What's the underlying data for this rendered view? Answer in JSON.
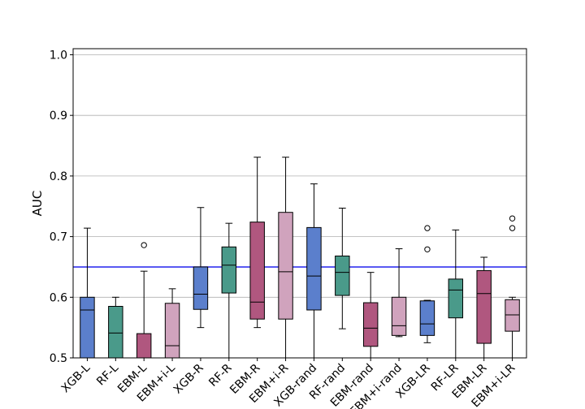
{
  "chart_data": {
    "type": "box",
    "title": "",
    "xlabel": "",
    "ylabel": "AUC",
    "ylim": [
      0.5,
      1.01
    ],
    "yticks": [
      0.5,
      0.6,
      0.7,
      0.8,
      0.9,
      1.0
    ],
    "ytick_labels": [
      "0.5",
      "0.6",
      "0.7",
      "0.8",
      "0.9",
      "1.0"
    ],
    "grid": "horizontal",
    "reference_line": {
      "value": 0.65,
      "color": "#2222ee"
    },
    "colors": {
      "blue": "#5b7fcc",
      "green": "#4a9a8a",
      "magenta": "#b0577f",
      "pink": "#d0a3bd"
    },
    "boxes": [
      {
        "label": "XGB-L",
        "color": "blue",
        "whisker_low": 0.5,
        "q1": 0.5,
        "median": 0.579,
        "q3": 0.6,
        "whisker_high": 0.714,
        "outliers": []
      },
      {
        "label": "RF-L",
        "color": "green",
        "whisker_low": 0.5,
        "q1": 0.5,
        "median": 0.541,
        "q3": 0.585,
        "whisker_high": 0.6,
        "outliers": []
      },
      {
        "label": "EBM-L",
        "color": "magenta",
        "whisker_low": 0.5,
        "q1": 0.5,
        "median": 0.5,
        "q3": 0.54,
        "whisker_high": 0.643,
        "outliers": [
          0.686
        ]
      },
      {
        "label": "EBM+i-L",
        "color": "pink",
        "whisker_low": 0.5,
        "q1": 0.5,
        "median": 0.52,
        "q3": 0.59,
        "whisker_high": 0.614,
        "outliers": []
      },
      {
        "label": "XGB-R",
        "color": "blue",
        "whisker_low": 0.55,
        "q1": 0.58,
        "median": 0.605,
        "q3": 0.65,
        "whisker_high": 0.748,
        "outliers": []
      },
      {
        "label": "RF-R",
        "color": "green",
        "whisker_low": 0.5,
        "q1": 0.607,
        "median": 0.653,
        "q3": 0.683,
        "whisker_high": 0.722,
        "outliers": []
      },
      {
        "label": "EBM-R",
        "color": "magenta",
        "whisker_low": 0.55,
        "q1": 0.564,
        "median": 0.592,
        "q3": 0.724,
        "whisker_high": 0.831,
        "outliers": []
      },
      {
        "label": "EBM+i-R",
        "color": "pink",
        "whisker_low": 0.5,
        "q1": 0.564,
        "median": 0.642,
        "q3": 0.74,
        "whisker_high": 0.831,
        "outliers": []
      },
      {
        "label": "XGB-rand",
        "color": "blue",
        "whisker_low": 0.5,
        "q1": 0.579,
        "median": 0.635,
        "q3": 0.715,
        "whisker_high": 0.787,
        "outliers": []
      },
      {
        "label": "RF-rand",
        "color": "green",
        "whisker_low": 0.548,
        "q1": 0.603,
        "median": 0.641,
        "q3": 0.668,
        "whisker_high": 0.747,
        "outliers": []
      },
      {
        "label": "EBM-rand",
        "color": "magenta",
        "whisker_low": 0.5,
        "q1": 0.519,
        "median": 0.549,
        "q3": 0.591,
        "whisker_high": 0.641,
        "outliers": []
      },
      {
        "label": "EBM+i-rand",
        "color": "pink",
        "whisker_low": 0.535,
        "q1": 0.537,
        "median": 0.553,
        "q3": 0.6,
        "whisker_high": 0.68,
        "outliers": []
      },
      {
        "label": "XGB-LR",
        "color": "blue",
        "whisker_low": 0.525,
        "q1": 0.537,
        "median": 0.556,
        "q3": 0.594,
        "whisker_high": 0.595,
        "outliers": [
          0.679,
          0.714
        ]
      },
      {
        "label": "RF-LR",
        "color": "green",
        "whisker_low": 0.5,
        "q1": 0.566,
        "median": 0.612,
        "q3": 0.63,
        "whisker_high": 0.711,
        "outliers": []
      },
      {
        "label": "EBM-LR",
        "color": "magenta",
        "whisker_low": 0.5,
        "q1": 0.524,
        "median": 0.606,
        "q3": 0.644,
        "whisker_high": 0.666,
        "outliers": []
      },
      {
        "label": "EBM+i-LR",
        "color": "pink",
        "whisker_low": 0.5,
        "q1": 0.544,
        "median": 0.571,
        "q3": 0.596,
        "whisker_high": 0.6,
        "outliers": [
          0.714,
          0.73
        ]
      }
    ]
  }
}
